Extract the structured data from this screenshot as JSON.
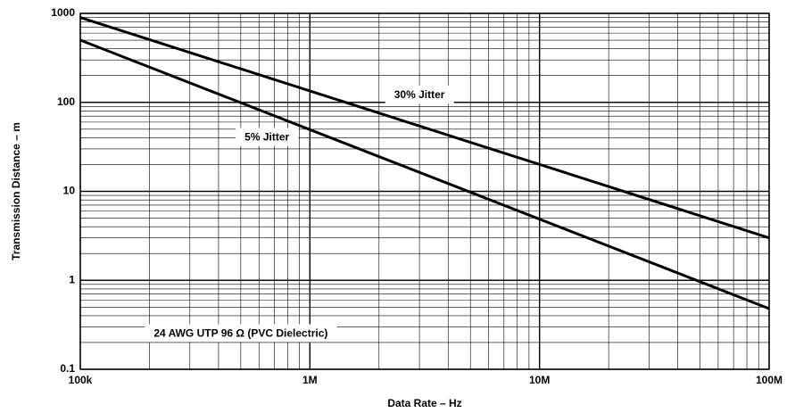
{
  "chart_data": {
    "type": "line",
    "title": "",
    "xlabel": "Data Rate – Hz",
    "ylabel": "Transmission Distance – m",
    "xscale": "log",
    "yscale": "log",
    "xlim": [
      100000,
      100000000
    ],
    "ylim": [
      0.1,
      1000
    ],
    "grid": true,
    "x_ticks": [
      {
        "value": 100000,
        "label": "100k"
      },
      {
        "value": 1000000,
        "label": "1M"
      },
      {
        "value": 10000000,
        "label": "10M"
      },
      {
        "value": 100000000,
        "label": "100M"
      }
    ],
    "y_ticks": [
      {
        "value": 0.1,
        "label": "0.1"
      },
      {
        "value": 1,
        "label": "1"
      },
      {
        "value": 10,
        "label": "10"
      },
      {
        "value": 100,
        "label": "100"
      },
      {
        "value": 1000,
        "label": "1000"
      }
    ],
    "series": [
      {
        "name": "30% Jitter",
        "x": [
          100000,
          100000000
        ],
        "y": [
          900,
          3
        ]
      },
      {
        "name": "5% Jitter",
        "x": [
          100000,
          100000000
        ],
        "y": [
          500,
          0.48
        ]
      }
    ],
    "annotations": [
      {
        "text": "30% Jitter",
        "x": 3000000,
        "y": 120
      },
      {
        "text": "5% Jitter",
        "x": 650000,
        "y": 40
      },
      {
        "text": "24 AWG UTP 96 Ω (PVC Dielectric)",
        "x": 500000,
        "y": 0.25
      }
    ],
    "colors": {
      "line": "#000000",
      "grid": "#000000",
      "background": "#ffffff"
    }
  }
}
